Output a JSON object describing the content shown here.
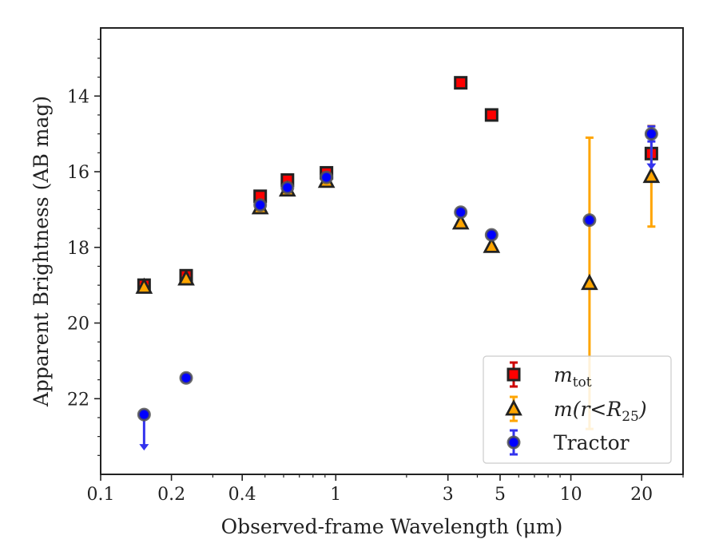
{
  "chart_data": {
    "type": "scatter",
    "xlabel": "Observed-frame Wavelength (μm)",
    "ylabel": "Apparent Brightness (AB mag)",
    "xscale": "log",
    "xlim": [
      0.1,
      30
    ],
    "ylim": [
      24.0,
      12.2
    ],
    "y_inverted": true,
    "grid": false,
    "legend_position": "lower-right",
    "x_ticks": [
      {
        "value": 0.1,
        "label": "0.1"
      },
      {
        "value": 0.2,
        "label": "0.2"
      },
      {
        "value": 0.4,
        "label": "0.4"
      },
      {
        "value": 1,
        "label": "1"
      },
      {
        "value": 3,
        "label": "3"
      },
      {
        "value": 5,
        "label": "5"
      },
      {
        "value": 10,
        "label": "10"
      },
      {
        "value": 20,
        "label": "20"
      }
    ],
    "y_ticks": [
      {
        "value": 14,
        "label": "14"
      },
      {
        "value": 16,
        "label": "16"
      },
      {
        "value": 18,
        "label": "18"
      },
      {
        "value": 20,
        "label": "20"
      },
      {
        "value": 22,
        "label": "22"
      }
    ],
    "series": [
      {
        "name": "m_tot",
        "legend_main": "m",
        "legend_sub": "tot",
        "marker": "square",
        "color": "#ff0000",
        "errcolor": "#cc0000",
        "points": [
          {
            "x": 0.153,
            "y": 19.0,
            "err": 0.05
          },
          {
            "x": 0.231,
            "y": 18.75,
            "err": 0.05
          },
          {
            "x": 0.477,
            "y": 16.65,
            "err": 0.05
          },
          {
            "x": 0.623,
            "y": 16.22,
            "err": 0.05
          },
          {
            "x": 0.913,
            "y": 16.03,
            "err": 0.05
          },
          {
            "x": 3.4,
            "y": 13.65,
            "err": 0.03
          },
          {
            "x": 4.6,
            "y": 14.5,
            "err": 0.03
          },
          {
            "x": 22,
            "y": 15.52,
            "err": 0.05
          }
        ]
      },
      {
        "name": "m(r<R25)",
        "legend_main": "m(r<R",
        "legend_sub": "25",
        "legend_tail": ")",
        "marker": "triangle",
        "color": "#ffa500",
        "errcolor": "#ffa500",
        "points": [
          {
            "x": 0.153,
            "y": 19.05,
            "err": 0.05
          },
          {
            "x": 0.231,
            "y": 18.83,
            "err": 0.05
          },
          {
            "x": 0.477,
            "y": 16.95,
            "err": 0.05
          },
          {
            "x": 0.623,
            "y": 16.48,
            "err": 0.05
          },
          {
            "x": 0.913,
            "y": 16.25,
            "err": 0.05
          },
          {
            "x": 3.4,
            "y": 17.35,
            "err": 0.03
          },
          {
            "x": 4.6,
            "y": 17.97,
            "err": 0.03
          },
          {
            "x": 12,
            "y": 18.95,
            "err": 3.85
          },
          {
            "x": 22,
            "y": 16.12,
            "err": 1.33
          }
        ]
      },
      {
        "name": "Tractor",
        "legend_main": "Tractor",
        "marker": "circle",
        "color": "#0000ff",
        "errcolor": "#3333ee",
        "points": [
          {
            "x": 0.153,
            "y": 22.42,
            "upper_limit": true
          },
          {
            "x": 0.231,
            "y": 21.45,
            "err": 0.05
          },
          {
            "x": 0.477,
            "y": 16.88,
            "err": 0.05
          },
          {
            "x": 0.623,
            "y": 16.42,
            "err": 0.05
          },
          {
            "x": 0.913,
            "y": 16.15,
            "err": 0.05
          },
          {
            "x": 3.4,
            "y": 17.07,
            "err": 0.03
          },
          {
            "x": 4.6,
            "y": 17.67,
            "err": 0.03
          },
          {
            "x": 12,
            "y": 17.28,
            "err": 0.05
          },
          {
            "x": 22,
            "y": 15.0,
            "err": 0.2,
            "upper_limit_arrow": true
          }
        ]
      }
    ]
  }
}
